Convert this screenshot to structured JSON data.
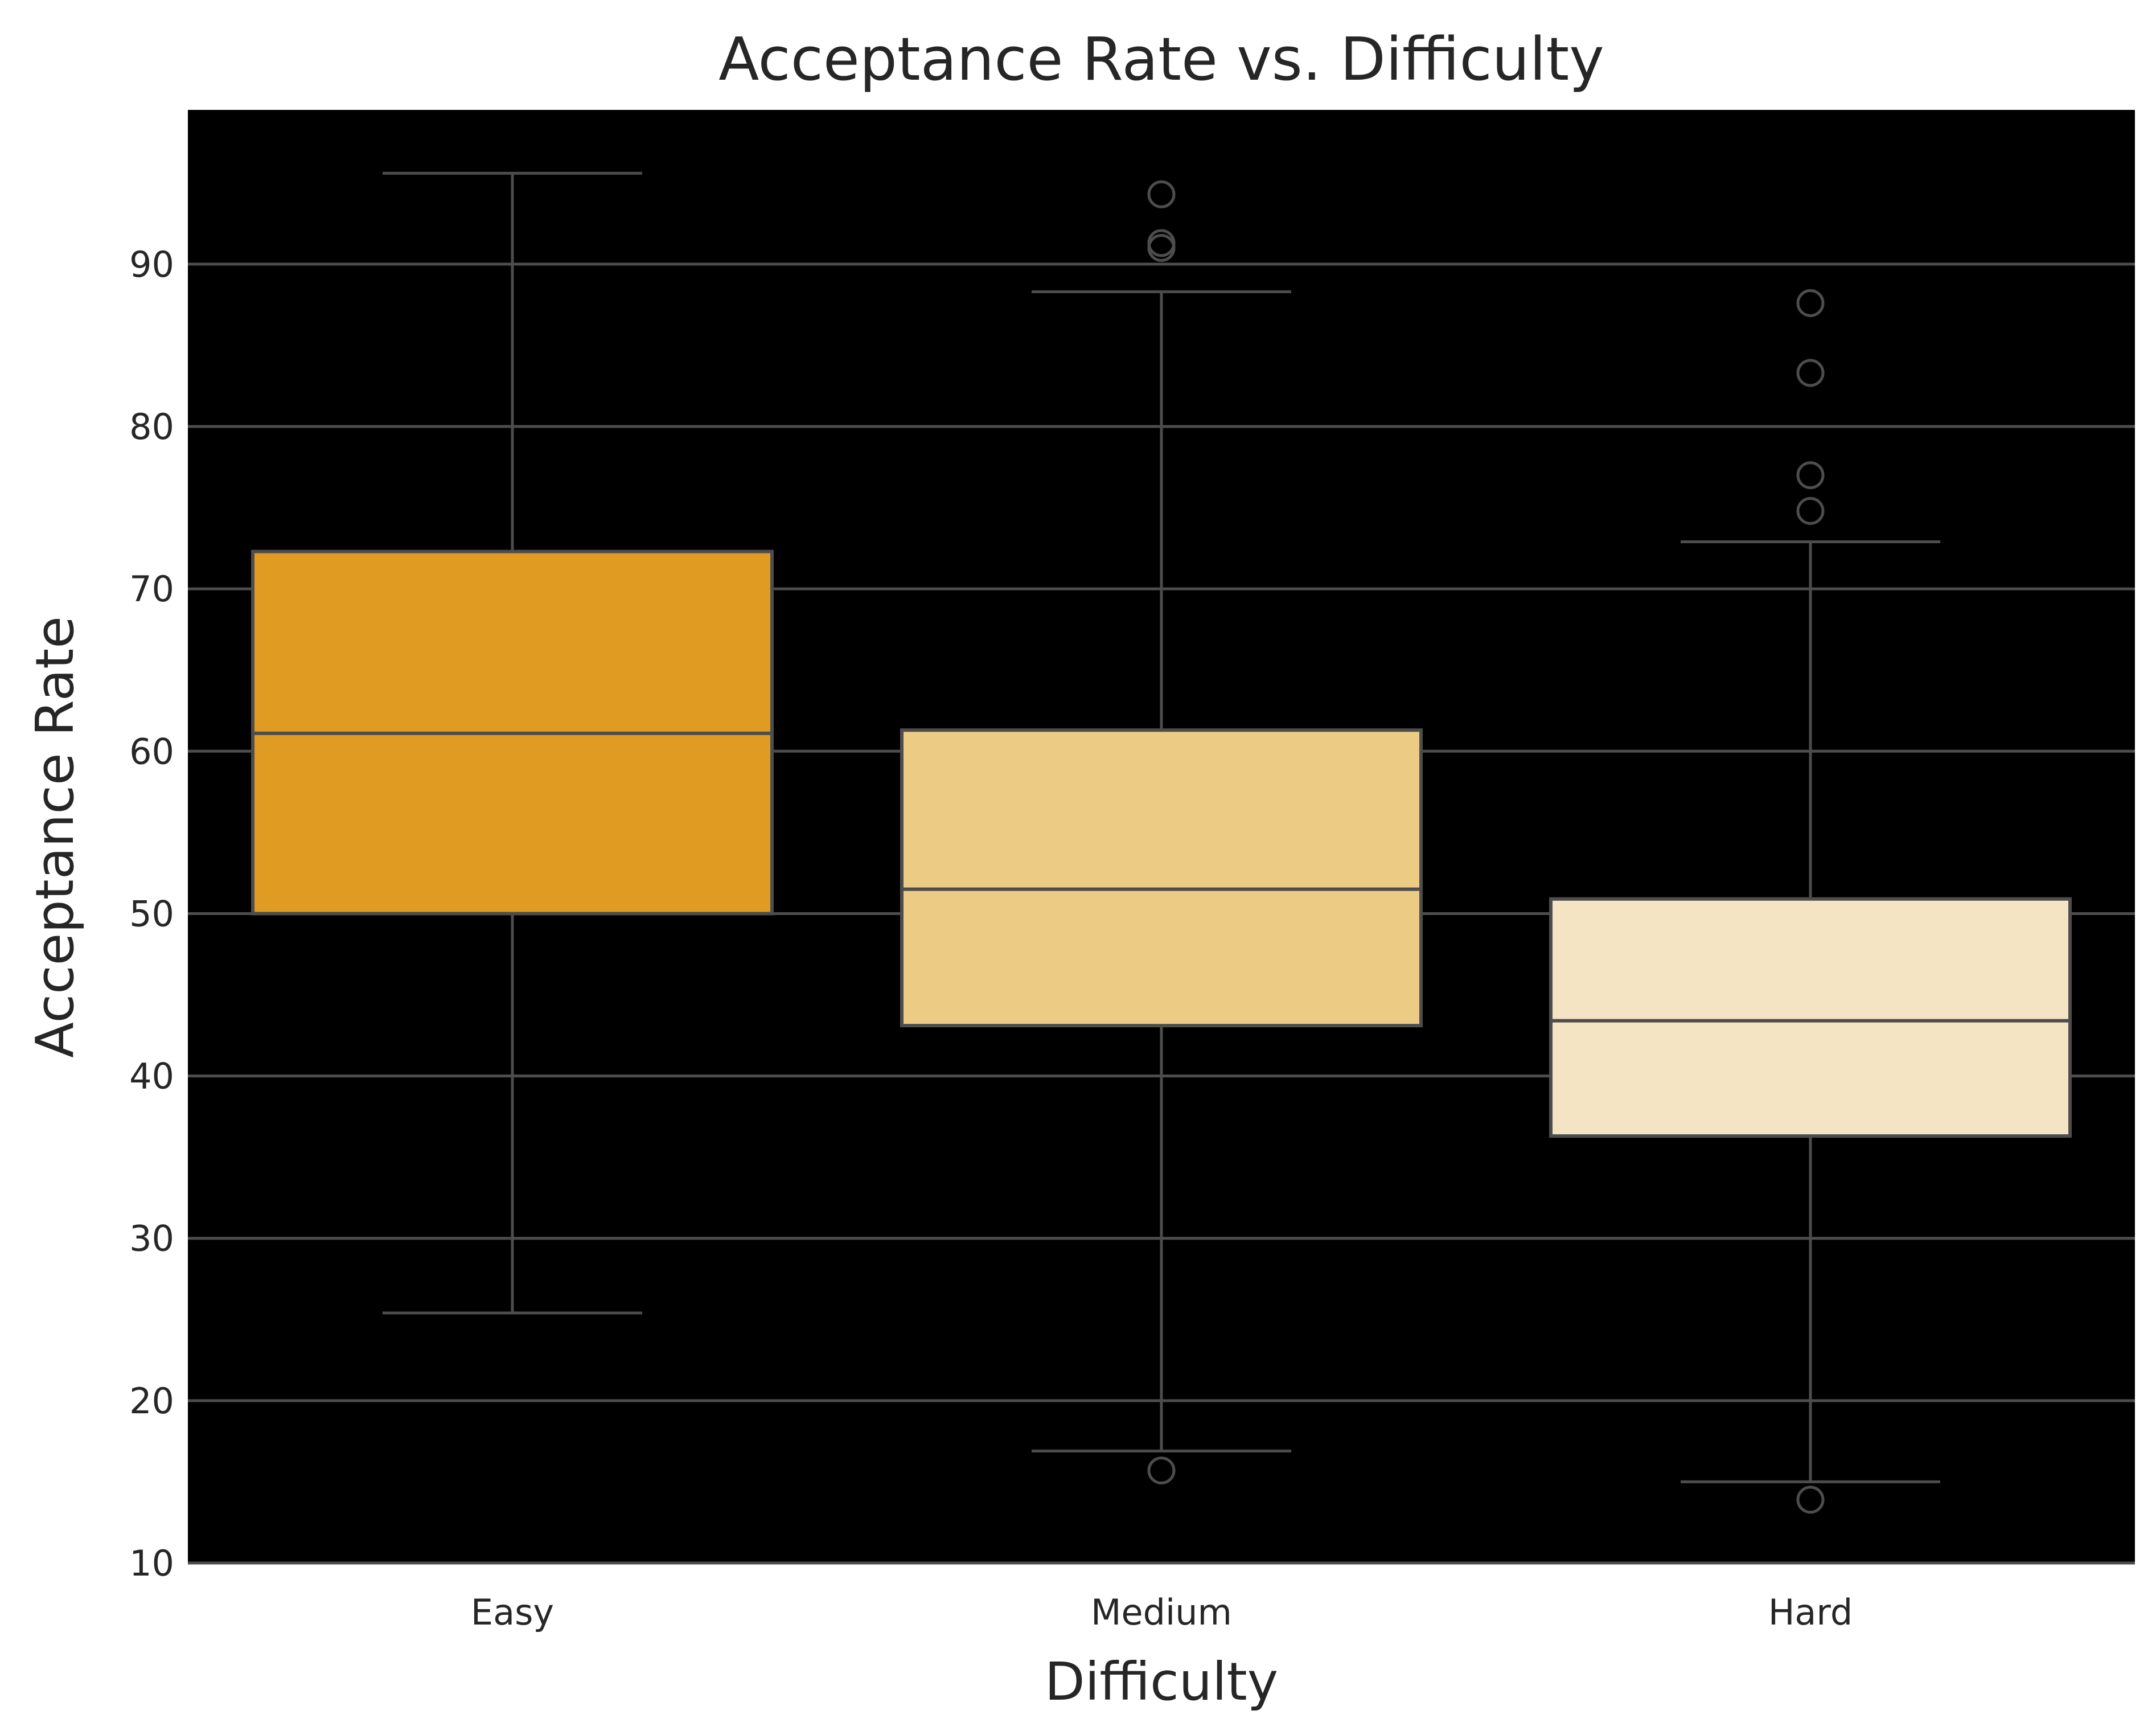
{
  "chart_data": {
    "type": "box",
    "title": "Acceptance Rate vs. Difficulty",
    "xlabel": "Difficulty",
    "ylabel": "Acceptance Rate",
    "ylim": [
      10,
      99.5
    ],
    "yticks": [
      10,
      20,
      30,
      40,
      50,
      60,
      70,
      80,
      90
    ],
    "grid": true,
    "categories": [
      "Easy",
      "Medium",
      "Hard"
    ],
    "boxes": [
      {
        "category": "Easy",
        "whisker_low": 25.4,
        "q1": 50.0,
        "median": 61.1,
        "q3": 72.3,
        "whisker_high": 95.6,
        "outliers": [],
        "color": "#e09b23"
      },
      {
        "category": "Medium",
        "whisker_low": 16.9,
        "q1": 43.1,
        "median": 51.5,
        "q3": 61.3,
        "whisker_high": 88.3,
        "outliers": [
          15.7,
          91.0,
          91.3,
          94.3
        ],
        "color": "#eccb85"
      },
      {
        "category": "Hard",
        "whisker_low": 15.0,
        "q1": 36.3,
        "median": 43.4,
        "q3": 50.9,
        "whisker_high": 72.9,
        "outliers": [
          13.9,
          74.8,
          77.0,
          83.3,
          87.6
        ],
        "color": "#f5e4c3"
      }
    ],
    "colors": {
      "plot_background": "#000000",
      "grid": "#4d4d4d",
      "box_edge": "#4d4d4d"
    }
  }
}
